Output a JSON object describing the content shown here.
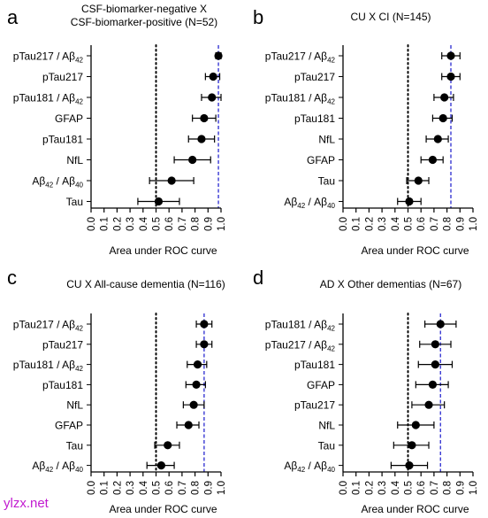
{
  "watermark": "ylzx.net",
  "chart_data": [
    {
      "panel_letter": "a",
      "type": "scatter",
      "title": "CSF-biomarker-negative X",
      "title_line2": "CSF-biomarker-positive (N=52)",
      "xlabel": "Area under ROC curve",
      "xlim": [
        0.0,
        1.0
      ],
      "xticks": [
        "0.0",
        "0.1",
        "0.2",
        "0.3",
        "0.4",
        "0.5",
        "0.6",
        "0.7",
        "0.8",
        "0.9",
        "1.0"
      ],
      "reference_lines": [
        {
          "x": 0.5,
          "style": "dotted",
          "color": "#000000"
        },
        {
          "x": 0.98,
          "style": "dashed",
          "color": "#2a2ad0"
        }
      ],
      "categories": [
        "pTau217 / Aβ42",
        "pTau217",
        "pTau181 / Aβ42",
        "GFAP",
        "pTau181",
        "NfL",
        "Aβ42 / Aβ40",
        "Tau"
      ],
      "values": [
        0.98,
        0.94,
        0.93,
        0.87,
        0.85,
        0.78,
        0.62,
        0.52
      ],
      "ci_low": [
        0.96,
        0.88,
        0.85,
        0.78,
        0.75,
        0.64,
        0.45,
        0.36
      ],
      "ci_high": [
        1.0,
        0.99,
        1.0,
        0.96,
        0.95,
        0.92,
        0.79,
        0.68
      ]
    },
    {
      "panel_letter": "b",
      "type": "scatter",
      "title": "CU X CI (N=145)",
      "title_line2": "",
      "xlabel": "Area under ROC curve",
      "xlim": [
        0.0,
        1.0
      ],
      "xticks": [
        "0.0",
        "0.1",
        "0.2",
        "0.3",
        "0.4",
        "0.5",
        "0.6",
        "0.7",
        "0.8",
        "0.9",
        "1.0"
      ],
      "reference_lines": [
        {
          "x": 0.5,
          "style": "dotted",
          "color": "#000000"
        },
        {
          "x": 0.83,
          "style": "dashed",
          "color": "#2a2ad0"
        }
      ],
      "categories": [
        "pTau217 / Aβ42",
        "pTau217",
        "pTau181 / Aβ42",
        "pTau181",
        "NfL",
        "GFAP",
        "Tau",
        "Aβ42 / Aβ40"
      ],
      "values": [
        0.83,
        0.83,
        0.78,
        0.77,
        0.73,
        0.69,
        0.58,
        0.51
      ],
      "ci_low": [
        0.76,
        0.76,
        0.7,
        0.69,
        0.64,
        0.6,
        0.49,
        0.42
      ],
      "ci_high": [
        0.9,
        0.9,
        0.85,
        0.84,
        0.81,
        0.77,
        0.66,
        0.6
      ]
    },
    {
      "panel_letter": "c",
      "type": "scatter",
      "title": "CU X All-cause dementia (N=116)",
      "title_line2": "",
      "xlabel": "Area under ROC curve",
      "xlim": [
        0.0,
        1.0
      ],
      "xticks": [
        "0.0",
        "0.1",
        "0.2",
        "0.3",
        "0.4",
        "0.5",
        "0.6",
        "0.7",
        "0.8",
        "0.9",
        "1.0"
      ],
      "reference_lines": [
        {
          "x": 0.5,
          "style": "dotted",
          "color": "#000000"
        },
        {
          "x": 0.87,
          "style": "dashed",
          "color": "#2a2ad0"
        }
      ],
      "categories": [
        "pTau217 / Aβ42",
        "pTau217",
        "pTau181 / Aβ42",
        "pTau181",
        "NfL",
        "GFAP",
        "Tau",
        "Aβ42 / Aβ40"
      ],
      "values": [
        0.87,
        0.87,
        0.82,
        0.81,
        0.79,
        0.75,
        0.59,
        0.54
      ],
      "ci_low": [
        0.81,
        0.81,
        0.74,
        0.73,
        0.71,
        0.66,
        0.49,
        0.43
      ],
      "ci_high": [
        0.93,
        0.93,
        0.89,
        0.88,
        0.87,
        0.83,
        0.68,
        0.64
      ]
    },
    {
      "panel_letter": "d",
      "type": "scatter",
      "title": "AD X Other dementias (N=67)",
      "title_line2": "",
      "xlabel": "Area under ROC curve",
      "xlim": [
        0.0,
        1.0
      ],
      "xticks": [
        "0.0",
        "0.1",
        "0.2",
        "0.3",
        "0.4",
        "0.5",
        "0.6",
        "0.7",
        "0.8",
        "0.9",
        "1.0"
      ],
      "reference_lines": [
        {
          "x": 0.5,
          "style": "dotted",
          "color": "#000000"
        },
        {
          "x": 0.75,
          "style": "dashed",
          "color": "#2a2ad0"
        }
      ],
      "categories": [
        "pTau181 / Aβ42",
        "pTau217 / Aβ42",
        "pTau181",
        "GFAP",
        "pTau217",
        "NfL",
        "Tau",
        "Aβ42 / Aβ40"
      ],
      "values": [
        0.75,
        0.71,
        0.71,
        0.69,
        0.66,
        0.56,
        0.53,
        0.51
      ],
      "ci_low": [
        0.63,
        0.59,
        0.58,
        0.56,
        0.53,
        0.42,
        0.39,
        0.37
      ],
      "ci_high": [
        0.87,
        0.83,
        0.84,
        0.81,
        0.78,
        0.7,
        0.66,
        0.65
      ]
    }
  ]
}
